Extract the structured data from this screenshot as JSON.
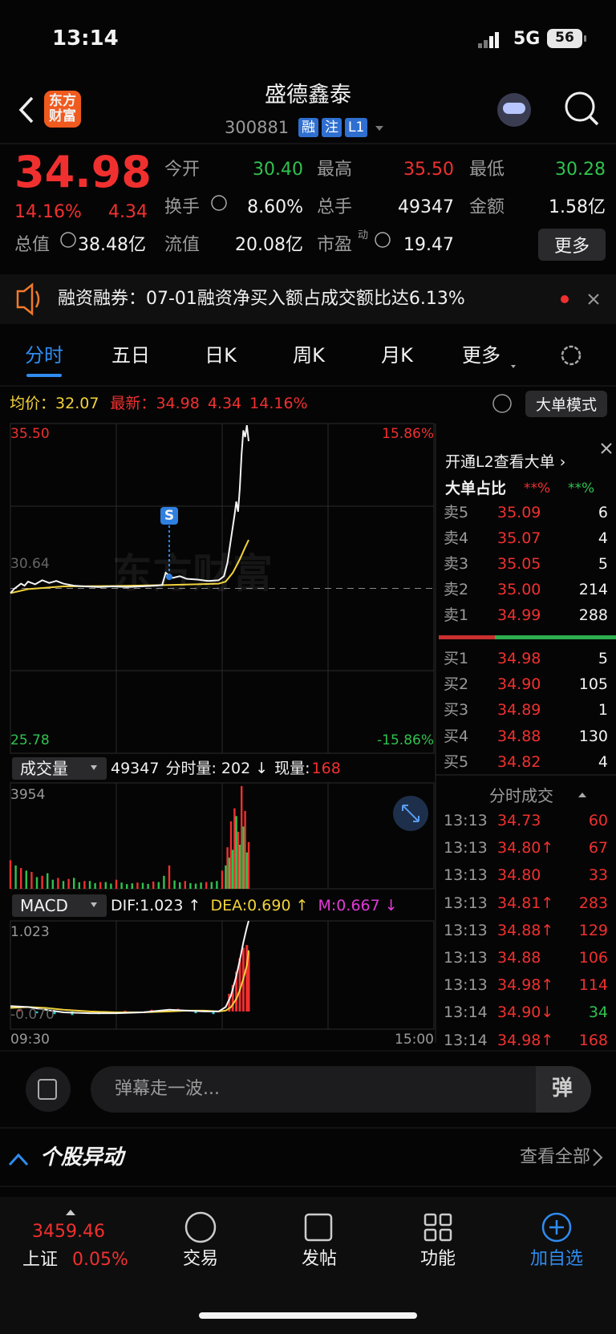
{
  "status_bar": {
    "time": "13:14",
    "network": "5G",
    "battery": "56"
  },
  "header": {
    "logo": "东方财富",
    "title": "盛德鑫泰",
    "code": "300881",
    "tags": [
      "融",
      "注",
      "L1"
    ]
  },
  "quote": {
    "price": "34.98",
    "change_pct": "14.16%",
    "change": "4.34",
    "fields": {
      "open": {
        "label": "今开",
        "value": "30.40"
      },
      "high": {
        "label": "最高",
        "value": "35.50"
      },
      "low": {
        "label": "最低",
        "value": "30.28"
      },
      "turnover": {
        "label": "换手",
        "value": "8.60%"
      },
      "volume": {
        "label": "总手",
        "value": "49347"
      },
      "amount": {
        "label": "金额",
        "value": "1.58亿"
      },
      "market_cap": {
        "label": "总值",
        "value": "38.48亿"
      },
      "float_cap": {
        "label": "流值",
        "value": "20.08亿"
      },
      "pe": {
        "label": "市盈",
        "sup": "动",
        "value": "19.47"
      }
    },
    "more": "更多"
  },
  "news": {
    "text": "融资融券：07-01融资净买入额占成交额比达6.13%"
  },
  "tabs": [
    "分时",
    "五日",
    "日K",
    "周K",
    "月K",
    "更多"
  ],
  "info_bar": {
    "avg_label": "均价：",
    "avg": "32.07",
    "latest_label": "最新：",
    "latest": "34.98",
    "change": "4.34",
    "change_pct": "14.16%",
    "mode_button": "大单模式"
  },
  "intraday": {
    "ylim": [
      25.78,
      35.5
    ],
    "xlim": [
      0,
      240
    ],
    "top_label": "35.50",
    "top_pct": "15.86%",
    "bottom_label": "25.78",
    "bottom_pct": "-15.86%",
    "base": 30.64,
    "base_label": "30.64",
    "watermark": "东方财富",
    "signal": "S",
    "signal_x": 90,
    "signal_price": 30.98,
    "price_color": "#f4f4f4",
    "avg_color": "#f2d33a",
    "x": [
      0,
      2,
      4,
      6,
      8,
      10,
      14,
      18,
      22,
      26,
      30,
      36,
      42,
      50,
      58,
      66,
      74,
      82,
      86,
      88,
      90,
      92,
      96,
      100,
      106,
      112,
      118,
      121,
      123,
      125,
      127,
      128,
      129,
      130,
      131,
      132,
      133,
      134,
      135
    ],
    "price": [
      30.5,
      30.62,
      30.7,
      30.78,
      30.72,
      30.84,
      30.76,
      30.88,
      30.8,
      30.86,
      30.78,
      30.72,
      30.7,
      30.68,
      30.7,
      30.68,
      30.7,
      30.72,
      30.74,
      31.1,
      31.02,
      30.95,
      31.0,
      30.92,
      30.9,
      30.86,
      30.88,
      31.0,
      31.4,
      32.1,
      32.8,
      33.2,
      32.9,
      33.6,
      34.6,
      35.3,
      35.1,
      35.45,
      34.98
    ],
    "avg_x": [
      0,
      10,
      30,
      60,
      90,
      118,
      122,
      126,
      130,
      133,
      135
    ],
    "avg": [
      30.5,
      30.62,
      30.7,
      30.71,
      30.74,
      30.78,
      30.84,
      31.1,
      31.5,
      31.85,
      32.07
    ],
    "x_labels": [
      "09:30",
      "15:00"
    ]
  },
  "volume": {
    "label": "成交量",
    "total": "49347",
    "minute_volume": "分时量: 202 ↓",
    "current_label": "现量:",
    "current": "168",
    "max_label": "3954",
    "ylim": [
      0,
      3954
    ],
    "up_color": "#f0302f",
    "down_color": "#2fc24f",
    "up": {
      "x": [
        0,
        6,
        12,
        18,
        27,
        33,
        42,
        51,
        60,
        72,
        81,
        90,
        99,
        111,
        120,
        123,
        125,
        127,
        129,
        131,
        133,
        135
      ],
      "values": [
        1100,
        800,
        650,
        500,
        420,
        380,
        300,
        260,
        350,
        240,
        280,
        900,
        300,
        260,
        700,
        1600,
        2600,
        3100,
        2200,
        3954,
        3000,
        1800
      ]
    },
    "down": {
      "x": [
        3,
        9,
        15,
        21,
        24,
        30,
        36,
        39,
        45,
        48,
        54,
        57,
        63,
        66,
        69,
        75,
        78,
        84,
        87,
        93,
        96,
        102,
        105,
        108,
        114,
        117,
        122,
        124,
        126,
        128,
        130,
        132,
        134
      ],
      "values": [
        900,
        700,
        450,
        600,
        350,
        300,
        420,
        250,
        300,
        220,
        260,
        200,
        240,
        180,
        210,
        230,
        190,
        260,
        500,
        320,
        250,
        220,
        200,
        240,
        260,
        300,
        900,
        1200,
        1500,
        2800,
        1700,
        2400,
        1400
      ]
    }
  },
  "macd": {
    "label": "MACD",
    "dif": "DIF:1.023 ↑",
    "dea": "DEA:0.690 ↑",
    "m": "M:0.667 ↓",
    "top_label": "1.023",
    "bottom_label": "-0.070",
    "ylim": [
      -0.2,
      1.023
    ],
    "dif_color": "#f4f4f4",
    "dea_color": "#f2d33a",
    "pos_color": "#f0302f",
    "neg_color": "#2cc6c9",
    "x": [
      0,
      10,
      20,
      30,
      45,
      60,
      75,
      90,
      100,
      110,
      118,
      122,
      125,
      128,
      130,
      132,
      134,
      135
    ],
    "dif_values": [
      0.06,
      0.05,
      0.02,
      -0.01,
      -0.02,
      -0.02,
      -0.01,
      0.02,
      0.01,
      0.0,
      0.0,
      0.05,
      0.18,
      0.4,
      0.58,
      0.78,
      0.95,
      1.023
    ],
    "dea_values": [
      0.04,
      0.05,
      0.04,
      0.02,
      0.0,
      -0.01,
      -0.01,
      0.0,
      0.01,
      0.01,
      0.0,
      0.01,
      0.05,
      0.14,
      0.24,
      0.37,
      0.52,
      0.69
    ],
    "bars": {
      "x": [
        5,
        15,
        25,
        35,
        50,
        65,
        80,
        95,
        105,
        115,
        124,
        126,
        128,
        130,
        132,
        134,
        135
      ],
      "values": [
        0.02,
        -0.02,
        -0.03,
        -0.04,
        -0.03,
        0.01,
        0.02,
        0.03,
        -0.02,
        -0.03,
        0.2,
        0.3,
        0.45,
        0.6,
        0.72,
        0.75,
        0.667
      ]
    }
  },
  "order_book": {
    "link": "开通L2查看大单 ›",
    "ratio_label": "大单占比",
    "ratio_sell": "**%",
    "ratio_buy": "**%",
    "asks": [
      [
        "卖5",
        "35.09",
        "6"
      ],
      [
        "卖4",
        "35.07",
        "4"
      ],
      [
        "卖3",
        "35.05",
        "5"
      ],
      [
        "卖2",
        "35.00",
        "214"
      ],
      [
        "卖1",
        "34.99",
        "288"
      ]
    ],
    "bids": [
      [
        "买1",
        "34.98",
        "5"
      ],
      [
        "买2",
        "34.90",
        "105"
      ],
      [
        "买3",
        "34.89",
        "1"
      ],
      [
        "买4",
        "34.88",
        "130"
      ],
      [
        "买5",
        "34.82",
        "4"
      ]
    ]
  },
  "trades": {
    "title": "分时成交",
    "rows": [
      [
        "13:13",
        "34.73",
        "60"
      ],
      [
        "13:13",
        "34.80↑",
        "67"
      ],
      [
        "13:13",
        "34.80",
        "33"
      ],
      [
        "13:13",
        "34.81↑",
        "283"
      ],
      [
        "13:13",
        "34.88↑",
        "129"
      ],
      [
        "13:13",
        "34.88",
        "106"
      ],
      [
        "13:13",
        "34.98↑",
        "114"
      ],
      [
        "13:14",
        "34.90↓",
        "34"
      ],
      [
        "13:14",
        "34.98↑",
        "168"
      ]
    ]
  },
  "comment": {
    "placeholder": "弹幕走一波...",
    "button": "弹"
  },
  "section": {
    "title": "个股异动",
    "link": "查看全部"
  },
  "bottom_nav": {
    "index_value": "3459.46",
    "index_name": "上证",
    "index_change": "0.05%",
    "items": [
      "交易",
      "发帖",
      "功能",
      "加自选"
    ]
  }
}
